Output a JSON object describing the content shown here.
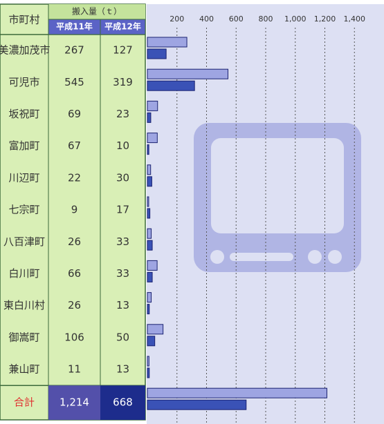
{
  "chart_data": {
    "type": "bar",
    "column_header": "市町村",
    "value_header": "搬入量（ｔ）",
    "categories": [
      "美濃加茂市",
      "可児市",
      "坂祝町",
      "富加町",
      "川辺町",
      "七宗町",
      "八百津町",
      "白川町",
      "東白川村",
      "御嵩町",
      "兼山町",
      "合計"
    ],
    "series": [
      {
        "name": "平成11年",
        "color": "#9ea5e2",
        "values": [
          267,
          545,
          69,
          67,
          22,
          9,
          26,
          66,
          26,
          106,
          11,
          1214
        ],
        "value_labels": [
          "267",
          "545",
          "69",
          "67",
          "22",
          "9",
          "26",
          "66",
          "26",
          "106",
          "11",
          "1,214"
        ]
      },
      {
        "name": "平成12年",
        "color": "#3a52b6",
        "values": [
          127,
          319,
          23,
          10,
          30,
          17,
          33,
          33,
          13,
          50,
          13,
          668
        ]
      }
    ],
    "xlim": [
      0,
      1600
    ],
    "xticks": [
      200,
      400,
      600,
      800,
      {
        "value": 1000,
        "label": "1,000"
      },
      {
        "value": 1200,
        "label": "1,200"
      },
      {
        "value": 1400,
        "label": "1,400"
      }
    ],
    "grid": true
  }
}
